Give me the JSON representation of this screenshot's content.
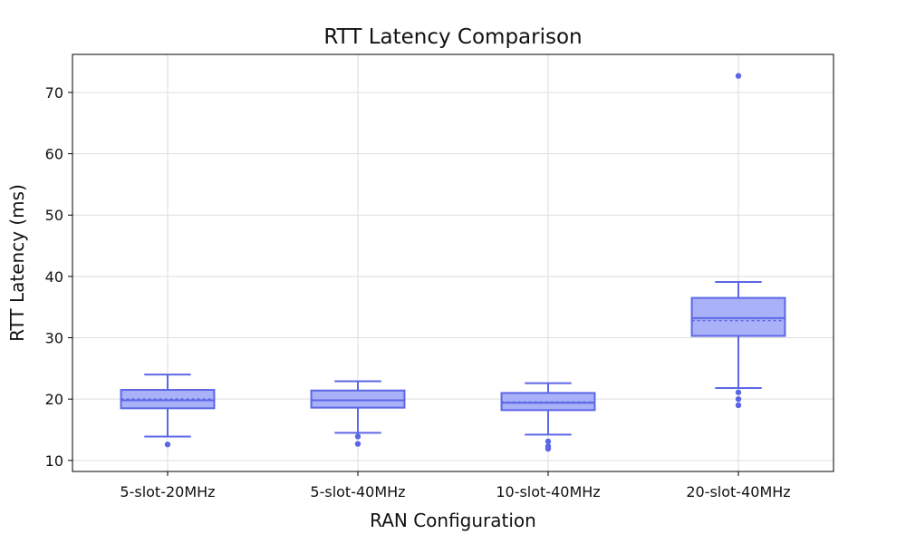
{
  "chart_data": {
    "type": "box",
    "title": "RTT Latency Comparison",
    "xlabel": "RAN Configuration",
    "ylabel": "RTT Latency (ms)",
    "ylim": [
      8.2,
      76.2
    ],
    "yticks": [
      10,
      20,
      30,
      40,
      50,
      60,
      70
    ],
    "grid": true,
    "colors": {
      "stroke": "#5c67e6",
      "fill": "#a9b1f8",
      "grid": "#dddddd"
    },
    "categories": [
      "5-slot-20MHz",
      "5-slot-40MHz",
      "10-slot-40MHz",
      "20-slot-40MHz"
    ],
    "boxes": [
      {
        "category": "5-slot-20MHz",
        "whisker_low": 13.9,
        "q1": 18.5,
        "median": 19.8,
        "mean": 20.0,
        "q3": 21.5,
        "whisker_high": 24.0,
        "outliers": [
          12.6
        ]
      },
      {
        "category": "5-slot-40MHz",
        "whisker_low": 14.5,
        "q1": 18.6,
        "median": 19.8,
        "mean": 19.8,
        "q3": 21.4,
        "whisker_high": 22.9,
        "outliers": [
          13.9,
          12.7
        ]
      },
      {
        "category": "10-slot-40MHz",
        "whisker_low": 14.2,
        "q1": 18.2,
        "median": 19.4,
        "mean": 19.5,
        "q3": 21.0,
        "whisker_high": 22.6,
        "outliers": [
          13.1,
          12.3,
          11.9
        ]
      },
      {
        "category": "20-slot-40MHz",
        "whisker_low": 21.8,
        "q1": 30.3,
        "median": 33.2,
        "mean": 32.8,
        "q3": 36.5,
        "whisker_high": 39.1,
        "outliers": [
          72.7,
          21.1,
          20.0,
          19.0
        ]
      }
    ]
  }
}
